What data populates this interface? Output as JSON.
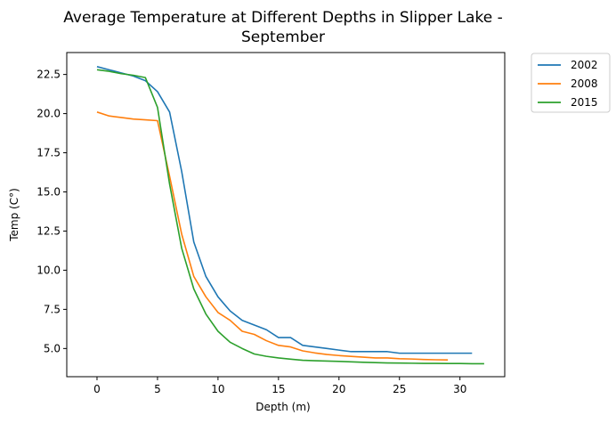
{
  "chart_data": {
    "type": "line",
    "title": "Average Temperature at Different Depths in Slipper Lake - September",
    "title_lines": [
      "Average Temperature at Different Depths in Slipper Lake -",
      "September"
    ],
    "xlabel": "Depth (m)",
    "ylabel": "Temp (C°)",
    "xlim": [
      -2.5,
      33.7
    ],
    "ylim": [
      3.2,
      23.9
    ],
    "x_ticks": [
      0,
      5,
      10,
      15,
      20,
      25,
      30
    ],
    "x_tick_labels": [
      "0",
      "5",
      "10",
      "15",
      "20",
      "25",
      "30"
    ],
    "y_ticks": [
      5.0,
      7.5,
      10.0,
      12.5,
      15.0,
      17.5,
      20.0,
      22.5
    ],
    "y_tick_labels": [
      "5.0",
      "7.5",
      "10.0",
      "12.5",
      "15.0",
      "17.5",
      "20.0",
      "22.5"
    ],
    "grid": false,
    "legend_position": "outside top-right",
    "series": [
      {
        "name": "2002",
        "color": "#1f77b4",
        "x": [
          0,
          1,
          2,
          3,
          4,
          5,
          6,
          7,
          8,
          9,
          10,
          11,
          12,
          13,
          14,
          15,
          16,
          17,
          18,
          19,
          20,
          21,
          22,
          23,
          24,
          25,
          26,
          27,
          28,
          29,
          30,
          31
        ],
        "y": [
          23.0,
          22.8,
          22.6,
          22.4,
          22.1,
          21.4,
          20.1,
          16.3,
          11.8,
          9.6,
          8.3,
          7.4,
          6.8,
          6.5,
          6.2,
          5.7,
          5.7,
          5.2,
          5.1,
          5.0,
          4.9,
          4.8,
          4.8,
          4.8,
          4.8,
          4.7,
          4.7,
          4.7,
          4.7,
          4.7,
          4.7,
          4.7
        ]
      },
      {
        "name": "2008",
        "color": "#ff7f0e",
        "x": [
          0,
          1,
          2,
          3,
          4,
          5,
          6,
          7,
          8,
          9,
          10,
          11,
          12,
          13,
          14,
          15,
          16,
          17,
          18,
          19,
          20,
          21,
          22,
          23,
          24,
          25,
          26,
          27,
          28,
          29
        ],
        "y": [
          20.1,
          19.85,
          19.75,
          19.65,
          19.6,
          19.55,
          16.0,
          12.3,
          9.6,
          8.3,
          7.3,
          6.8,
          6.1,
          5.9,
          5.5,
          5.2,
          5.1,
          4.85,
          4.72,
          4.62,
          4.55,
          4.5,
          4.45,
          4.4,
          4.4,
          4.35,
          4.33,
          4.3,
          4.28,
          4.27
        ]
      },
      {
        "name": "2015",
        "color": "#2ca02c",
        "x": [
          0,
          1,
          2,
          3,
          4,
          5,
          6,
          7,
          8,
          9,
          10,
          11,
          12,
          13,
          14,
          15,
          16,
          17,
          18,
          19,
          20,
          21,
          22,
          23,
          24,
          25,
          26,
          27,
          28,
          29,
          30,
          31,
          32
        ],
        "y": [
          22.8,
          22.7,
          22.55,
          22.45,
          22.3,
          20.4,
          15.5,
          11.4,
          8.8,
          7.2,
          6.1,
          5.4,
          5.0,
          4.65,
          4.5,
          4.4,
          4.32,
          4.25,
          4.22,
          4.2,
          4.18,
          4.15,
          4.12,
          4.1,
          4.08,
          4.07,
          4.06,
          4.05,
          4.05,
          4.04,
          4.04,
          4.03,
          4.03
        ]
      }
    ]
  }
}
